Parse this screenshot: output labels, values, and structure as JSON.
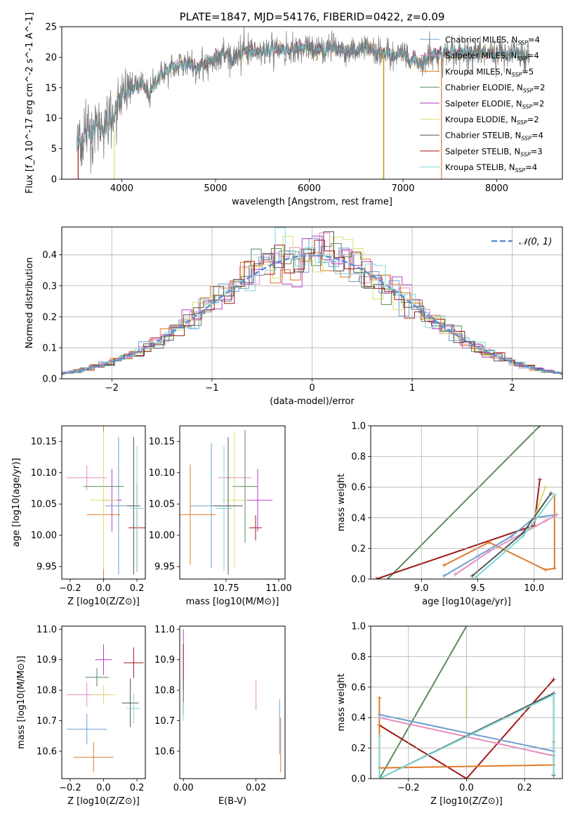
{
  "colors": {
    "chabrier_miles": "#6a9fd0",
    "salpeter_miles": "#e68cc0",
    "kroupa_miles": "#e07b2a",
    "chabrier_elodie": "#5a8a5e",
    "salpeter_elodie": "#b040c0",
    "kroupa_elodie": "#d8e070",
    "chabrier_stelib": "#555555",
    "salpeter_stelib": "#a01818",
    "kroupa_stelib": "#80d8d8",
    "gaussian": "#5b8ed6"
  },
  "chart_data": [
    {
      "id": "spectrum",
      "type": "line",
      "title": "PLATE=1847, MJD=54176, FIBERID=0422, z=0.09",
      "xlabel": "wavelength [Angstrom, rest frame]",
      "ylabel": "Flux [f_λ 10^-17 erg cm^-2 s^-1 A^-1]",
      "xlim": [
        3360,
        8700
      ],
      "ylim": [
        0,
        25
      ],
      "xticks": [
        4000,
        5000,
        6000,
        7000,
        8000
      ],
      "yticks": [
        0,
        5,
        10,
        15,
        20,
        25
      ],
      "legend_loc": "upper right",
      "legend": [
        {
          "text": "Chabrier MILES, N_SSP=4",
          "color": "chabrier_miles"
        },
        {
          "text": "Salpeter MILES, N_SSP=4",
          "color": "salpeter_miles"
        },
        {
          "text": "Kroupa MILES, N_SSP=5",
          "color": "kroupa_miles"
        },
        {
          "text": "Chabrier ELODIE, N_SSP=2",
          "color": "chabrier_elodie"
        },
        {
          "text": "Salpeter ELODIE, N_SSP=2",
          "color": "salpeter_elodie"
        },
        {
          "text": "Kroupa ELODIE, N_SSP=2",
          "color": "kroupa_elodie"
        },
        {
          "text": "Chabrier STELIB, N_SSP=4",
          "color": "chabrier_stelib"
        },
        {
          "text": "Salpeter STELIB, N_SSP=3",
          "color": "salpeter_stelib"
        },
        {
          "text": "Kroupa STELIB, N_SSP=4",
          "color": "kroupa_stelib"
        }
      ],
      "envelope": [
        [
          3520,
          5.5
        ],
        [
          3600,
          7
        ],
        [
          3700,
          9
        ],
        [
          3800,
          8.5
        ],
        [
          3900,
          10
        ],
        [
          3950,
          12.5
        ],
        [
          4000,
          13
        ],
        [
          4100,
          15
        ],
        [
          4200,
          15.5
        ],
        [
          4300,
          14
        ],
        [
          4400,
          17
        ],
        [
          4500,
          18
        ],
        [
          4600,
          18.5
        ],
        [
          4700,
          19
        ],
        [
          4800,
          18.5
        ],
        [
          4900,
          19
        ],
        [
          5000,
          20
        ],
        [
          5100,
          20.5
        ],
        [
          5200,
          19.5
        ],
        [
          5300,
          21
        ],
        [
          5400,
          21
        ],
        [
          5500,
          21.2
        ],
        [
          5600,
          21
        ],
        [
          5700,
          21.5
        ],
        [
          5800,
          21
        ],
        [
          5900,
          21.5
        ],
        [
          6000,
          21.5
        ],
        [
          6100,
          21
        ],
        [
          6200,
          21.5
        ],
        [
          6300,
          21.5
        ],
        [
          6400,
          21
        ],
        [
          6500,
          21
        ],
        [
          6600,
          21.5
        ],
        [
          6700,
          20.5
        ],
        [
          6800,
          20.5
        ],
        [
          6900,
          20.5
        ],
        [
          7000,
          20.5
        ],
        [
          7100,
          19.5
        ],
        [
          7200,
          19
        ],
        [
          7300,
          20.5
        ],
        [
          7400,
          20.5
        ],
        [
          7500,
          21
        ],
        [
          7600,
          20.5
        ],
        [
          7700,
          21
        ],
        [
          7800,
          20.5
        ],
        [
          7900,
          20.5
        ],
        [
          8000,
          20.5
        ],
        [
          8100,
          20.5
        ],
        [
          8200,
          20.5
        ],
        [
          8300,
          20
        ]
      ],
      "vertical_artifacts": [
        {
          "x": 3535,
          "y_from": 0,
          "y_to": 5.5,
          "color": "salpeter_stelib"
        },
        {
          "x": 3920,
          "y_from": 0,
          "y_to": 8,
          "color": "kroupa_elodie"
        },
        {
          "x": 6790,
          "y_from": 0,
          "y_to": 20.5,
          "color": "kroupa_elodie"
        },
        {
          "x": 6795,
          "y_from": 0,
          "y_to": 20.5,
          "color": "kroupa_miles"
        },
        {
          "x": 7410,
          "y_from": 0,
          "y_to": 20,
          "color": "kroupa_miles"
        }
      ]
    },
    {
      "id": "residuals",
      "type": "histogram",
      "xlabel": "(data-model)/error",
      "ylabel": "Normed distribution",
      "xlim": [
        -2.5,
        2.5
      ],
      "ylim": [
        0,
        0.49
      ],
      "xticks": [
        -2,
        -1,
        0,
        1,
        2
      ],
      "yticks": [
        0.0,
        0.1,
        0.2,
        0.3,
        0.4
      ],
      "grid": true,
      "legend_loc": "upper right",
      "legend": [
        {
          "text": "𝒩(0, 1)",
          "color": "gaussian",
          "style": "dashed"
        }
      ],
      "bin_width": 0.1,
      "series_colors": [
        "chabrier_miles",
        "salpeter_miles",
        "kroupa_miles",
        "chabrier_elodie",
        "salpeter_elodie",
        "kroupa_elodie",
        "chabrier_stelib",
        "salpeter_stelib",
        "kroupa_stelib"
      ]
    },
    {
      "id": "z_vs_age",
      "type": "errorbar",
      "xlabel": "Z [log10(Z/Z⊙)]",
      "ylabel": "age [log10(age/yr)]",
      "xlim": [
        -0.25,
        0.25
      ],
      "ylim": [
        9.93,
        10.175
      ],
      "xticks": [
        -0.2,
        0.0,
        0.2
      ],
      "yticks": [
        9.95,
        10.0,
        10.05,
        10.1,
        10.15
      ],
      "points": [
        {
          "x": 0.09,
          "y": 10.047,
          "xerr": 0.08,
          "yerr": 0.11,
          "color": "chabrier_miles"
        },
        {
          "x": -0.1,
          "y": 10.092,
          "xerr": 0.12,
          "yerr": 0.02,
          "color": "salpeter_miles"
        },
        {
          "x": 0.0,
          "y": 10.033,
          "xerr": 0.1,
          "yerr": 0.18,
          "color": "kroupa_miles"
        },
        {
          "x": 0.0,
          "y": 10.078,
          "xerr": 0.12,
          "yerr": 0.09,
          "color": "chabrier_elodie"
        },
        {
          "x": 0.05,
          "y": 10.056,
          "xerr": 0.06,
          "yerr": 0.05,
          "color": "salpeter_elodie"
        },
        {
          "x": 0.0,
          "y": 10.056,
          "xerr": 0.08,
          "yerr": 0.11,
          "color": "kroupa_elodie"
        },
        {
          "x": 0.18,
          "y": 10.047,
          "xerr": 0.04,
          "yerr": 0.11,
          "color": "chabrier_stelib"
        },
        {
          "x": 0.2,
          "y": 10.012,
          "xerr": 0.05,
          "yerr": 0.07,
          "color": "salpeter_stelib"
        },
        {
          "x": 0.2,
          "y": 10.043,
          "xerr": 0.04,
          "yerr": 0.1,
          "color": "kroupa_stelib"
        }
      ]
    },
    {
      "id": "mass_vs_age",
      "type": "errorbar",
      "xlabel": "mass [log10(M/M⊙)]",
      "ylabel": "",
      "xlim": [
        10.53,
        11.03
      ],
      "ylim": [
        9.93,
        10.175
      ],
      "xticks": [
        10.75,
        11.0
      ],
      "yticks": [
        9.95,
        10.0,
        10.05,
        10.1,
        10.15
      ],
      "points": [
        {
          "x": 10.68,
          "y": 10.047,
          "xerr": 0.1,
          "yerr": 0.1,
          "color": "chabrier_miles"
        },
        {
          "x": 10.79,
          "y": 10.092,
          "xerr": 0.08,
          "yerr": 0.03,
          "color": "salpeter_miles"
        },
        {
          "x": 10.58,
          "y": 10.033,
          "xerr": 0.12,
          "yerr": 0.08,
          "color": "kroupa_miles"
        },
        {
          "x": 10.84,
          "y": 10.078,
          "xerr": 0.06,
          "yerr": 0.09,
          "color": "chabrier_elodie"
        },
        {
          "x": 10.9,
          "y": 10.056,
          "xerr": 0.07,
          "yerr": 0.05,
          "color": "salpeter_elodie"
        },
        {
          "x": 10.79,
          "y": 10.056,
          "xerr": 0.06,
          "yerr": 0.11,
          "color": "kroupa_elodie"
        },
        {
          "x": 10.76,
          "y": 10.047,
          "xerr": 0.07,
          "yerr": 0.11,
          "color": "chabrier_stelib"
        },
        {
          "x": 10.89,
          "y": 10.012,
          "xerr": 0.03,
          "yerr": 0.02,
          "color": "salpeter_stelib"
        },
        {
          "x": 10.74,
          "y": 10.043,
          "xerr": 0.04,
          "yerr": 0.1,
          "color": "kroupa_stelib"
        }
      ]
    },
    {
      "id": "age_weights",
      "type": "line",
      "xlabel": "age [log10(age/yr)]",
      "ylabel": "mass weight",
      "xlim": [
        8.55,
        10.25
      ],
      "ylim": [
        0,
        1.0
      ],
      "xticks": [
        9.0,
        9.5,
        10.0
      ],
      "yticks": [
        0.0,
        0.2,
        0.4,
        0.6,
        0.8,
        1.0
      ],
      "grid": true,
      "series": [
        {
          "color": "chabrier_elodie",
          "x": [
            8.7,
            10.05
          ],
          "y": [
            0.0,
            1.0
          ]
        },
        {
          "color": "salpeter_stelib",
          "x": [
            8.6,
            10.0,
            10.05
          ],
          "y": [
            0.0,
            0.35,
            0.65
          ]
        },
        {
          "color": "kroupa_miles",
          "x": [
            9.2,
            9.6,
            10.1,
            10.18,
            10.18
          ],
          "y": [
            0.09,
            0.24,
            0.06,
            0.07,
            0.55
          ]
        },
        {
          "color": "chabrier_miles",
          "x": [
            9.2,
            9.5,
            9.8,
            10.0,
            10.2
          ],
          "y": [
            0.02,
            0.15,
            0.28,
            0.4,
            0.42
          ]
        },
        {
          "color": "salpeter_miles",
          "x": [
            9.3,
            9.6,
            9.9,
            10.1,
            10.2
          ],
          "y": [
            0.03,
            0.18,
            0.3,
            0.38,
            0.42
          ]
        },
        {
          "color": "kroupa_elodie",
          "x": [
            10.0,
            10.1
          ],
          "y": [
            0.4,
            0.6
          ]
        },
        {
          "color": "chabrier_stelib",
          "x": [
            9.45,
            9.9,
            10.15
          ],
          "y": [
            0.02,
            0.3,
            0.56
          ]
        },
        {
          "color": "kroupa_stelib",
          "x": [
            9.48,
            9.9,
            10.18
          ],
          "y": [
            0.01,
            0.28,
            0.55
          ]
        }
      ]
    },
    {
      "id": "z_vs_mass",
      "type": "errorbar",
      "xlabel": "Z [log10(Z/Z⊙)]",
      "ylabel": "mass [log10(M/M⊙)]",
      "xlim": [
        -0.25,
        0.25
      ],
      "ylim": [
        10.51,
        11.01
      ],
      "xticks": [
        -0.2,
        0.0,
        0.2
      ],
      "yticks": [
        10.6,
        10.7,
        10.8,
        10.9,
        11.0
      ],
      "points": [
        {
          "x": -0.1,
          "y": 10.672,
          "xerr": 0.12,
          "yerr": 0.05,
          "color": "chabrier_miles"
        },
        {
          "x": -0.1,
          "y": 10.785,
          "xerr": 0.12,
          "yerr": 0.04,
          "color": "salpeter_miles"
        },
        {
          "x": -0.06,
          "y": 10.58,
          "xerr": 0.12,
          "yerr": 0.05,
          "color": "kroupa_miles"
        },
        {
          "x": -0.04,
          "y": 10.842,
          "xerr": 0.07,
          "yerr": 0.03,
          "color": "chabrier_elodie"
        },
        {
          "x": 0.0,
          "y": 10.9,
          "xerr": 0.05,
          "yerr": 0.05,
          "color": "salpeter_elodie"
        },
        {
          "x": 0.0,
          "y": 10.785,
          "xerr": 0.07,
          "yerr": 0.03,
          "color": "kroupa_elodie"
        },
        {
          "x": 0.16,
          "y": 10.758,
          "xerr": 0.05,
          "yerr": 0.08,
          "color": "chabrier_stelib"
        },
        {
          "x": 0.18,
          "y": 10.89,
          "xerr": 0.06,
          "yerr": 0.05,
          "color": "salpeter_stelib"
        },
        {
          "x": 0.18,
          "y": 10.74,
          "xerr": 0.04,
          "yerr": 0.05,
          "color": "kroupa_stelib"
        }
      ]
    },
    {
      "id": "ebv_vs_mass",
      "type": "errorbar",
      "xlabel": "E(B-V)",
      "ylabel": "",
      "xlim": [
        -0.001,
        0.028
      ],
      "ylim": [
        10.51,
        11.01
      ],
      "xticks": [
        0.0,
        0.02
      ],
      "yticks": [
        10.6,
        10.7,
        10.8,
        10.9,
        11.0
      ],
      "points": [
        {
          "x": 0.0,
          "y": 10.9,
          "xerr": 0,
          "yerr": 0.1,
          "color": "salpeter_elodie"
        },
        {
          "x": 0.0,
          "y": 10.89,
          "xerr": 0,
          "yerr": 0.06,
          "color": "salpeter_stelib"
        },
        {
          "x": 0.0,
          "y": 10.78,
          "xerr": 0,
          "yerr": 0.06,
          "color": "chabrier_stelib"
        },
        {
          "x": 0.0,
          "y": 10.73,
          "xerr": 0,
          "yerr": 0.03,
          "color": "kroupa_stelib"
        },
        {
          "x": 0.02,
          "y": 10.785,
          "xerr": 0,
          "yerr": 0.05,
          "color": "salpeter_miles"
        },
        {
          "x": 0.0265,
          "y": 10.68,
          "xerr": 0,
          "yerr": 0.09,
          "color": "chabrier_miles"
        },
        {
          "x": 0.0268,
          "y": 10.62,
          "xerr": 0,
          "yerr": 0.09,
          "color": "kroupa_miles"
        }
      ]
    },
    {
      "id": "z_weights",
      "type": "line",
      "xlabel": "Z [log10(Z/Z⊙)]",
      "ylabel": "mass weight",
      "xlim": [
        -0.33,
        0.33
      ],
      "ylim": [
        0,
        1.0
      ],
      "xticks": [
        -0.2,
        0.0,
        0.2
      ],
      "yticks": [
        0.0,
        0.2,
        0.4,
        0.6,
        0.8,
        1.0
      ],
      "grid": true,
      "series": [
        {
          "color": "chabrier_elodie",
          "x": [
            -0.3,
            0.0
          ],
          "y": [
            0.0,
            1.0
          ]
        },
        {
          "color": "salpeter_stelib",
          "x": [
            -0.3,
            0.0,
            0.3
          ],
          "y": [
            0.35,
            0.0,
            0.65
          ]
        },
        {
          "color": "kroupa_miles",
          "x": [
            -0.3,
            -0.3,
            0.3,
            0.3
          ],
          "y": [
            0.53,
            0.07,
            0.09,
            0.24
          ]
        },
        {
          "color": "chabrier_miles",
          "x": [
            -0.3,
            0.3
          ],
          "y": [
            0.42,
            0.18
          ]
        },
        {
          "color": "salpeter_miles",
          "x": [
            -0.3,
            0.3
          ],
          "y": [
            0.4,
            0.15
          ]
        },
        {
          "color": "kroupa_elodie",
          "x": [
            0.0,
            0.0
          ],
          "y": [
            0.4,
            0.6
          ]
        },
        {
          "color": "chabrier_stelib",
          "x": [
            -0.3,
            0.3,
            0.3
          ],
          "y": [
            0.0,
            0.56,
            0.02
          ]
        },
        {
          "color": "kroupa_stelib",
          "x": [
            -0.3,
            -0.3,
            0.3,
            0.3
          ],
          "y": [
            0.28,
            0.0,
            0.55,
            0.03
          ]
        }
      ]
    }
  ]
}
